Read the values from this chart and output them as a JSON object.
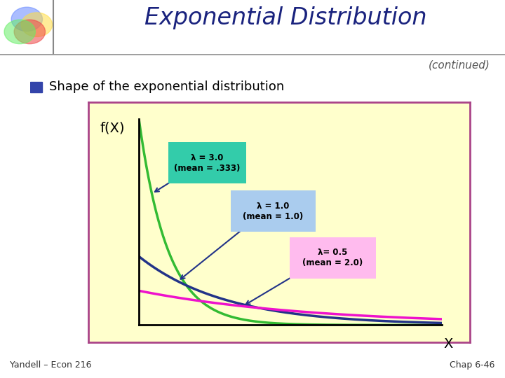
{
  "title": "Exponential Distribution",
  "continued": "(continued)",
  "bullet_text": "Shape of the exponential distribution",
  "ylabel": "f(X)",
  "xlabel": "X",
  "bg_color": "#FFFFFF",
  "plot_bg_color": "#FFFFCC",
  "plot_border_color": "#AA4488",
  "title_color": "#1A237E",
  "curves": [
    {
      "lambda": 3.0,
      "color": "#33BB33",
      "label": "λ = 3.0\n(mean = .333)",
      "label_bg": "#33CCAA"
    },
    {
      "lambda": 1.0,
      "color": "#223388",
      "label": "λ = 1.0\n(mean = 1.0)",
      "label_bg": "#AACCEE"
    },
    {
      "lambda": 0.5,
      "color": "#EE11CC",
      "label": "λ= 0.5\n(mean = 2.0)",
      "label_bg": "#FFBBEE"
    }
  ],
  "arrow_color": "#223388",
  "xmax": 3.5,
  "ymax": 3.0,
  "footer_left": "Yandell – Econ 216",
  "footer_right": "Chap 6-46"
}
